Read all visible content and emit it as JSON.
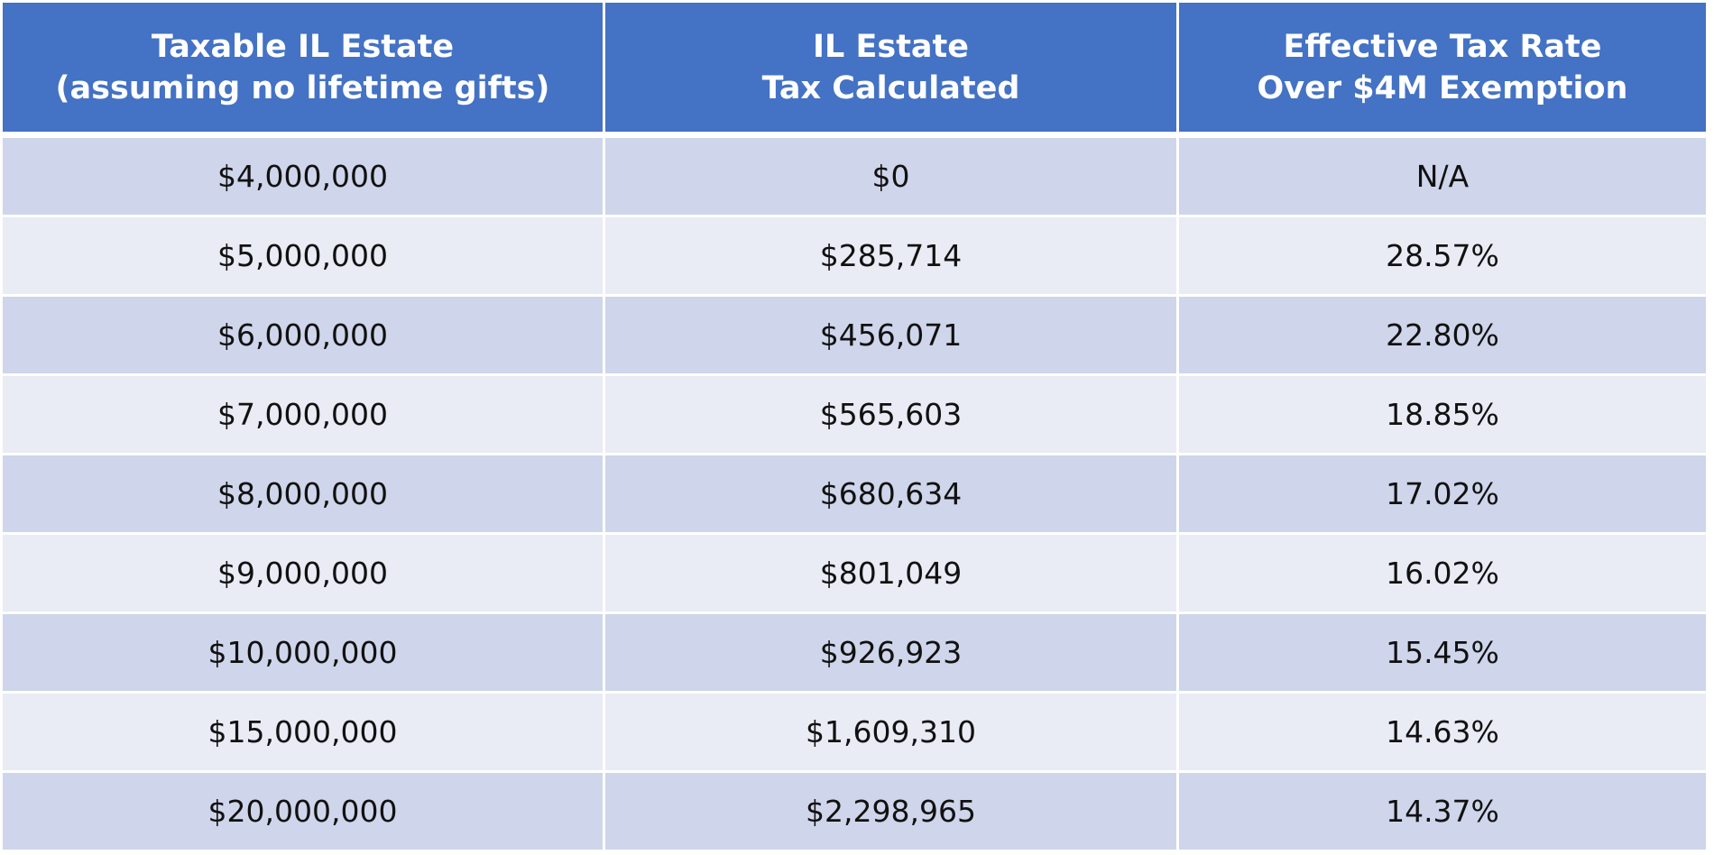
{
  "table": {
    "headers": [
      {
        "line1": "Taxable IL Estate",
        "line2": "(assuming no lifetime gifts)"
      },
      {
        "line1": "IL Estate",
        "line2": "Tax Calculated"
      },
      {
        "line1": "Effective Tax Rate",
        "line2": "Over $4M Exemption"
      }
    ],
    "rows": [
      [
        "$4,000,000",
        "$0",
        "N/A"
      ],
      [
        "$5,000,000",
        "$285,714",
        "28.57%"
      ],
      [
        "$6,000,000",
        "$456,071",
        "22.80%"
      ],
      [
        "$7,000,000",
        "$565,603",
        "18.85%"
      ],
      [
        "$8,000,000",
        "$680,634",
        "17.02%"
      ],
      [
        "$9,000,000",
        "$801,049",
        "16.02%"
      ],
      [
        "$10,000,000",
        "$926,923",
        "15.45%"
      ],
      [
        "$15,000,000",
        "$1,609,310",
        "14.63%"
      ],
      [
        "$20,000,000",
        "$2,298,965",
        "14.37%"
      ]
    ]
  },
  "colors": {
    "header": "#4472C4",
    "row_odd": "#CFD5EA",
    "row_even": "#E9EBF5"
  }
}
